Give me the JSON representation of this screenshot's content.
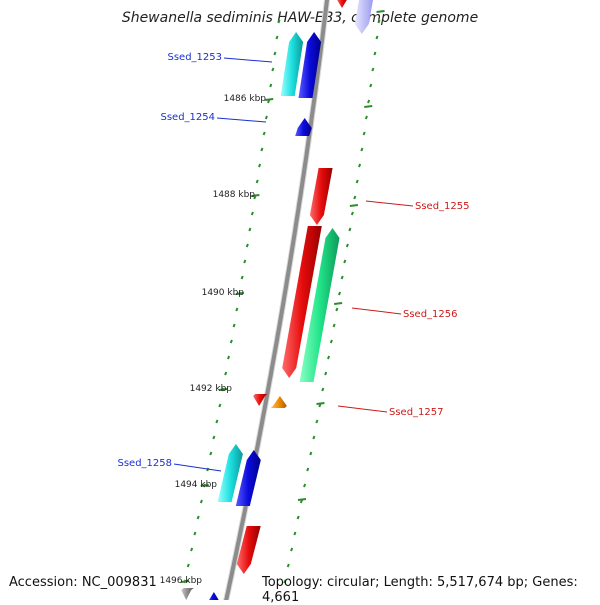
{
  "title": "Shewanella sediminis HAW-EB3, complete genome",
  "footer": {
    "accession": "Accession: NC_009831",
    "summary": "Topology: circular; Length: 5,517,674 bp; Genes: 4,661"
  },
  "kbp_labels": [
    {
      "label": "1486 kbp"
    },
    {
      "label": "1488 kbp"
    },
    {
      "label": "1490 kbp"
    },
    {
      "label": "1492 kbp"
    },
    {
      "label": "1494 kbp"
    },
    {
      "label": "1496 kbp"
    }
  ],
  "gene_labels": [
    {
      "label": "Ssed_1253",
      "color": "#1a2fd0"
    },
    {
      "label": "Ssed_1254",
      "color": "#1a2fd0"
    },
    {
      "label": "Ssed_1255",
      "color": "#cc1a1a"
    },
    {
      "label": "Ssed_1256",
      "color": "#cc1a1a"
    },
    {
      "label": "Ssed_1257",
      "color": "#cc1a1a"
    },
    {
      "label": "Ssed_1258",
      "color": "#1a2fd0"
    }
  ],
  "colors": {
    "backbone": "#8c8c8c",
    "tick": "#2e8b2e",
    "cds_forward": "#0b0bdc",
    "cds_reverse": "#e60c0c",
    "gene_forward": "#1ee0e0",
    "gene_reverse": "#22e58a",
    "orange": "#f28c00"
  }
}
